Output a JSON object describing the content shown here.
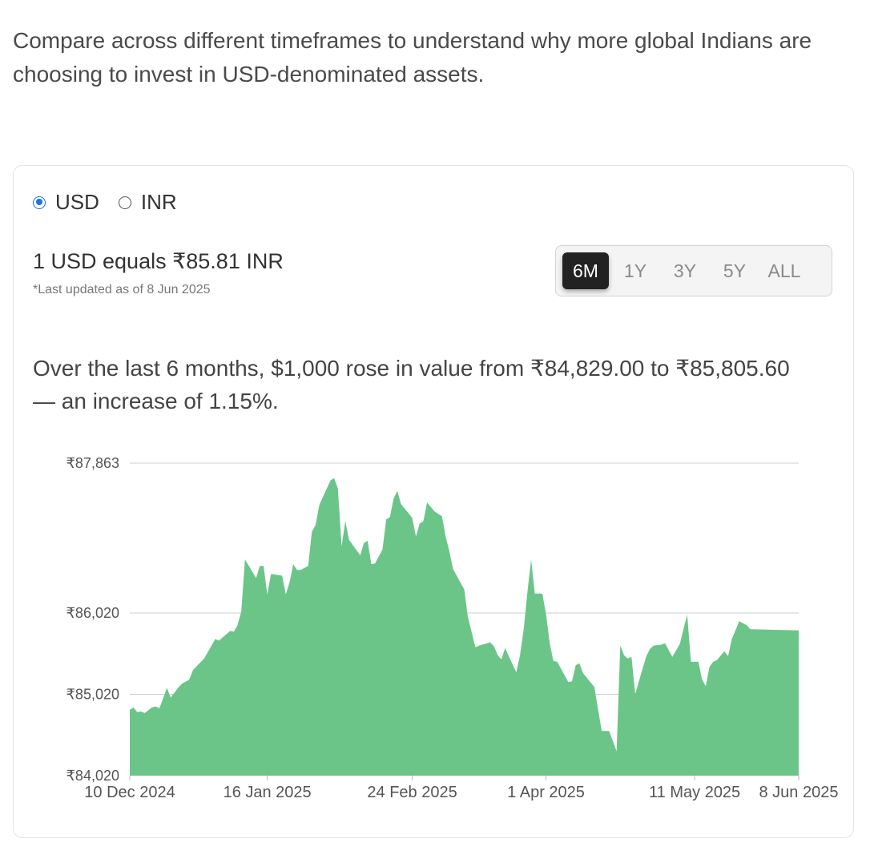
{
  "intro_text": "Compare across different timeframes to understand why more global Indians are choosing to invest in USD-denominated assets.",
  "currency": {
    "options": [
      "USD",
      "INR"
    ],
    "selected": "USD"
  },
  "rate_text": "1 USD equals ₹85.81 INR",
  "updated_text": "*Last updated as of 8 Jun 2025",
  "timeframes": [
    "6M",
    "1Y",
    "3Y",
    "5Y",
    "ALL"
  ],
  "active_timeframe": "6M",
  "summary_text": "Over the last 6 months, $1,000 rose in value from ₹84,829.00 to ₹85,805.60 — an increase of 1.15%.",
  "colors": {
    "area": "#6bc589",
    "accent": "#1a73e8",
    "active_tab": "#222222"
  },
  "chart_data": {
    "type": "area",
    "x_start": "2024-12-10",
    "x_end": "2025-06-08",
    "yticks": [
      84020,
      85020,
      86020,
      87863
    ],
    "ytick_labels": [
      "₹84,020",
      "₹85,020",
      "₹86,020",
      "₹87,863"
    ],
    "xticks": [
      "2024-12-10",
      "2025-01-16",
      "2025-02-24",
      "2025-04-01",
      "2025-05-11",
      "2025-06-08"
    ],
    "xtick_labels": [
      "10 Dec 2024",
      "16 Jan 2025",
      "24 Feb 2025",
      "1 Apr 2025",
      "11 May 2025",
      "8 Jun 2025"
    ],
    "ylim": [
      84020,
      87863
    ],
    "grid": true,
    "series": [
      {
        "points": [
          [
            "2024-12-10",
            84829
          ],
          [
            "2024-12-11",
            84860
          ],
          [
            "2024-12-12",
            84800
          ],
          [
            "2024-12-13",
            84810
          ],
          [
            "2024-12-14",
            84790
          ],
          [
            "2024-12-16",
            84860
          ],
          [
            "2024-12-17",
            84870
          ],
          [
            "2024-12-18",
            84850
          ],
          [
            "2024-12-20",
            85100
          ],
          [
            "2024-12-21",
            84980
          ],
          [
            "2024-12-23",
            85100
          ],
          [
            "2024-12-24",
            85150
          ],
          [
            "2024-12-26",
            85200
          ],
          [
            "2024-12-27",
            85320
          ],
          [
            "2024-12-30",
            85460
          ],
          [
            "2025-01-01",
            85620
          ],
          [
            "2025-01-02",
            85700
          ],
          [
            "2025-01-03",
            85680
          ],
          [
            "2025-01-06",
            85800
          ],
          [
            "2025-01-07",
            85790
          ],
          [
            "2025-01-08",
            85870
          ],
          [
            "2025-01-09",
            86040
          ],
          [
            "2025-01-10",
            86680
          ],
          [
            "2025-01-13",
            86450
          ],
          [
            "2025-01-14",
            86600
          ],
          [
            "2025-01-15",
            86600
          ],
          [
            "2025-01-16",
            86250
          ],
          [
            "2025-01-17",
            86500
          ],
          [
            "2025-01-20",
            86480
          ],
          [
            "2025-01-21",
            86250
          ],
          [
            "2025-01-22",
            86400
          ],
          [
            "2025-01-23",
            86620
          ],
          [
            "2025-01-24",
            86550
          ],
          [
            "2025-01-25",
            86550
          ],
          [
            "2025-01-27",
            86600
          ],
          [
            "2025-01-28",
            87020
          ],
          [
            "2025-01-29",
            87100
          ],
          [
            "2025-01-30",
            87350
          ],
          [
            "2025-02-02",
            87650
          ],
          [
            "2025-02-03",
            87680
          ],
          [
            "2025-02-04",
            87550
          ],
          [
            "2025-02-05",
            86840
          ],
          [
            "2025-02-06",
            87150
          ],
          [
            "2025-02-07",
            86920
          ],
          [
            "2025-02-10",
            86730
          ],
          [
            "2025-02-11",
            86880
          ],
          [
            "2025-02-12",
            86910
          ],
          [
            "2025-02-13",
            86620
          ],
          [
            "2025-02-14",
            86630
          ],
          [
            "2025-02-16",
            86800
          ],
          [
            "2025-02-17",
            87170
          ],
          [
            "2025-02-18",
            87200
          ],
          [
            "2025-02-19",
            87430
          ],
          [
            "2025-02-20",
            87520
          ],
          [
            "2025-02-21",
            87360
          ],
          [
            "2025-02-24",
            87190
          ],
          [
            "2025-02-25",
            86960
          ],
          [
            "2025-02-26",
            87120
          ],
          [
            "2025-02-27",
            87150
          ],
          [
            "2025-02-28",
            87380
          ],
          [
            "2025-03-02",
            87270
          ],
          [
            "2025-03-04",
            87210
          ],
          [
            "2025-03-05",
            86960
          ],
          [
            "2025-03-06",
            86780
          ],
          [
            "2025-03-07",
            86560
          ],
          [
            "2025-03-10",
            86310
          ],
          [
            "2025-03-11",
            85970
          ],
          [
            "2025-03-13",
            85600
          ],
          [
            "2025-03-14",
            85620
          ],
          [
            "2025-03-17",
            85660
          ],
          [
            "2025-03-18",
            85610
          ],
          [
            "2025-03-19",
            85500
          ],
          [
            "2025-03-20",
            85450
          ],
          [
            "2025-03-21",
            85590
          ],
          [
            "2025-03-24",
            85290
          ],
          [
            "2025-03-25",
            85500
          ],
          [
            "2025-03-26",
            85820
          ],
          [
            "2025-03-27",
            86280
          ],
          [
            "2025-03-28",
            86680
          ],
          [
            "2025-03-29",
            86260
          ],
          [
            "2025-03-31",
            86260
          ],
          [
            "2025-04-01",
            86010
          ],
          [
            "2025-04-02",
            85650
          ],
          [
            "2025-04-03",
            85430
          ],
          [
            "2025-04-04",
            85420
          ],
          [
            "2025-04-07",
            85170
          ],
          [
            "2025-04-08",
            85180
          ],
          [
            "2025-04-09",
            85380
          ],
          [
            "2025-04-10",
            85400
          ],
          [
            "2025-04-11",
            85280
          ],
          [
            "2025-04-14",
            85110
          ],
          [
            "2025-04-16",
            84570
          ],
          [
            "2025-04-18",
            84570
          ],
          [
            "2025-04-20",
            84320
          ],
          [
            "2025-04-21",
            85620
          ],
          [
            "2025-04-22",
            85500
          ],
          [
            "2025-04-23",
            85460
          ],
          [
            "2025-04-24",
            85480
          ],
          [
            "2025-04-25",
            85020
          ],
          [
            "2025-04-27",
            85340
          ],
          [
            "2025-04-28",
            85490
          ],
          [
            "2025-04-29",
            85580
          ],
          [
            "2025-04-30",
            85620
          ],
          [
            "2025-05-02",
            85630
          ],
          [
            "2025-05-03",
            85650
          ],
          [
            "2025-05-05",
            85480
          ],
          [
            "2025-05-06",
            85560
          ],
          [
            "2025-05-07",
            85640
          ],
          [
            "2025-05-09",
            86000
          ],
          [
            "2025-05-10",
            85420
          ],
          [
            "2025-05-12",
            85420
          ],
          [
            "2025-05-13",
            85200
          ],
          [
            "2025-05-14",
            85120
          ],
          [
            "2025-05-15",
            85360
          ],
          [
            "2025-05-16",
            85420
          ],
          [
            "2025-05-17",
            85440
          ],
          [
            "2025-05-19",
            85550
          ],
          [
            "2025-05-20",
            85490
          ],
          [
            "2025-05-21",
            85700
          ],
          [
            "2025-05-23",
            85920
          ],
          [
            "2025-05-25",
            85870
          ],
          [
            "2025-05-26",
            85820
          ],
          [
            "2025-06-08",
            85806
          ]
        ]
      }
    ]
  }
}
